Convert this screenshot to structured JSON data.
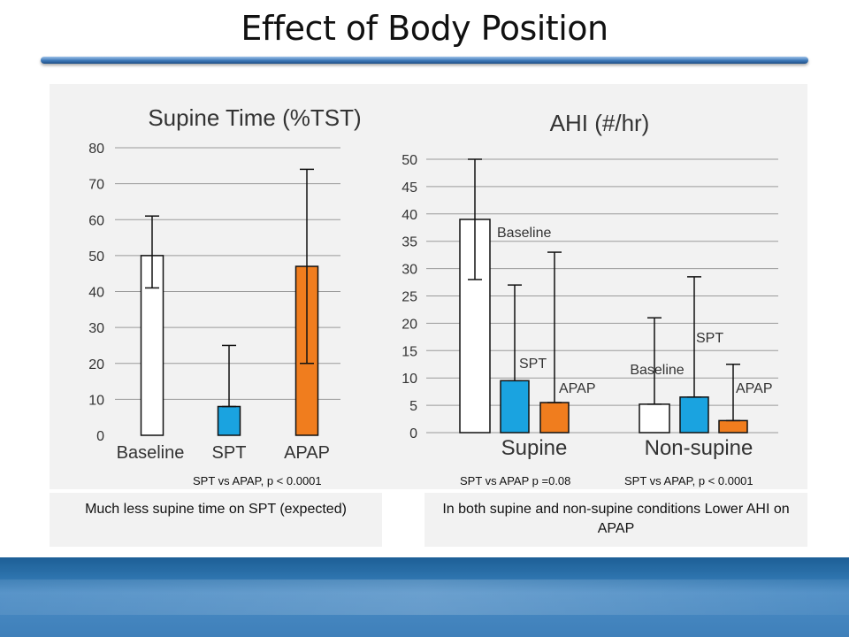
{
  "slide": {
    "title": "Effect of Body Position",
    "notes": [
      "Much less supine time on SPT (expected)",
      "In both supine and non-supine conditions Lower AHI on APAP"
    ],
    "pvalues": [
      "SPT vs APAP,  p < 0.0001",
      "SPT vs APAP p =0.08",
      "SPT vs APAP,  p < 0.0001"
    ]
  },
  "chart_data": [
    {
      "type": "bar",
      "title": "Supine Time (%TST)",
      "categories": [
        "Baseline",
        "SPT",
        "APAP"
      ],
      "values": [
        50,
        8,
        47
      ],
      "error_high": [
        61,
        25,
        74
      ],
      "error_low": [
        41,
        8,
        20
      ],
      "colors": [
        "#ffffff",
        "#1aa3e0",
        "#f07d1e"
      ],
      "ylim": [
        0,
        80
      ],
      "yticks": [
        "0",
        "10",
        "20",
        "30",
        "40",
        "50",
        "60",
        "70",
        "80"
      ],
      "xlabel": "",
      "ylabel": ""
    },
    {
      "type": "bar",
      "title": "AHI (#/hr)",
      "groups": [
        "Supine",
        "Non-supine"
      ],
      "series": [
        {
          "name": "Baseline",
          "color": "#ffffff",
          "values": [
            39,
            5.2
          ],
          "error_high": [
            50,
            21
          ],
          "error_low": [
            28,
            5.2
          ]
        },
        {
          "name": "SPT",
          "color": "#1aa3e0",
          "values": [
            9.5,
            6.5
          ],
          "error_high": [
            27,
            28.5
          ],
          "error_low": [
            9.5,
            6.5
          ]
        },
        {
          "name": "APAP",
          "color": "#f07d1e",
          "values": [
            5.5,
            2.2
          ],
          "error_high": [
            33,
            12.5
          ],
          "error_low": [
            5.5,
            2.2
          ]
        }
      ],
      "ylim": [
        0,
        50
      ],
      "yticks": [
        "0",
        "5",
        "10",
        "15",
        "20",
        "25",
        "30",
        "35",
        "40",
        "45",
        "50"
      ],
      "xlabel": "",
      "ylabel": ""
    }
  ]
}
